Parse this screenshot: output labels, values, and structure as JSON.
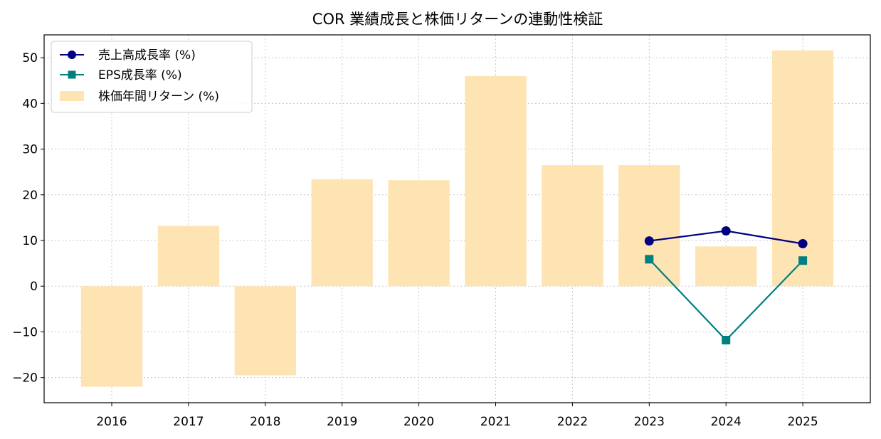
{
  "chart_data": {
    "type": "bar",
    "title": "COR 業績成長と株価リターンの連動性検証",
    "xlabel": "",
    "ylabel": "",
    "categories": [
      "2016",
      "2017",
      "2018",
      "2019",
      "2020",
      "2021",
      "2022",
      "2023",
      "2024",
      "2025"
    ],
    "ylim": [
      -25.5,
      55
    ],
    "yticks": [
      -20,
      -10,
      0,
      10,
      20,
      30,
      40,
      50
    ],
    "grid": true,
    "legend_position": "top-left",
    "series": [
      {
        "name": "売上高成長率 (%)",
        "kind": "line",
        "marker": "circle",
        "color": "#000080",
        "values": [
          null,
          null,
          null,
          null,
          null,
          null,
          null,
          9.9,
          12.1,
          9.3
        ]
      },
      {
        "name": "EPS成長率 (%)",
        "kind": "line",
        "marker": "square",
        "color": "#008080",
        "values": [
          null,
          null,
          null,
          null,
          null,
          null,
          null,
          5.9,
          -11.8,
          5.6
        ]
      },
      {
        "name": "株価年間リターン (%)",
        "kind": "bar",
        "color": "#ffe4b3",
        "values": [
          -22.0,
          13.2,
          -19.5,
          23.4,
          23.2,
          46.0,
          26.5,
          26.5,
          8.7,
          51.6
        ]
      }
    ]
  }
}
